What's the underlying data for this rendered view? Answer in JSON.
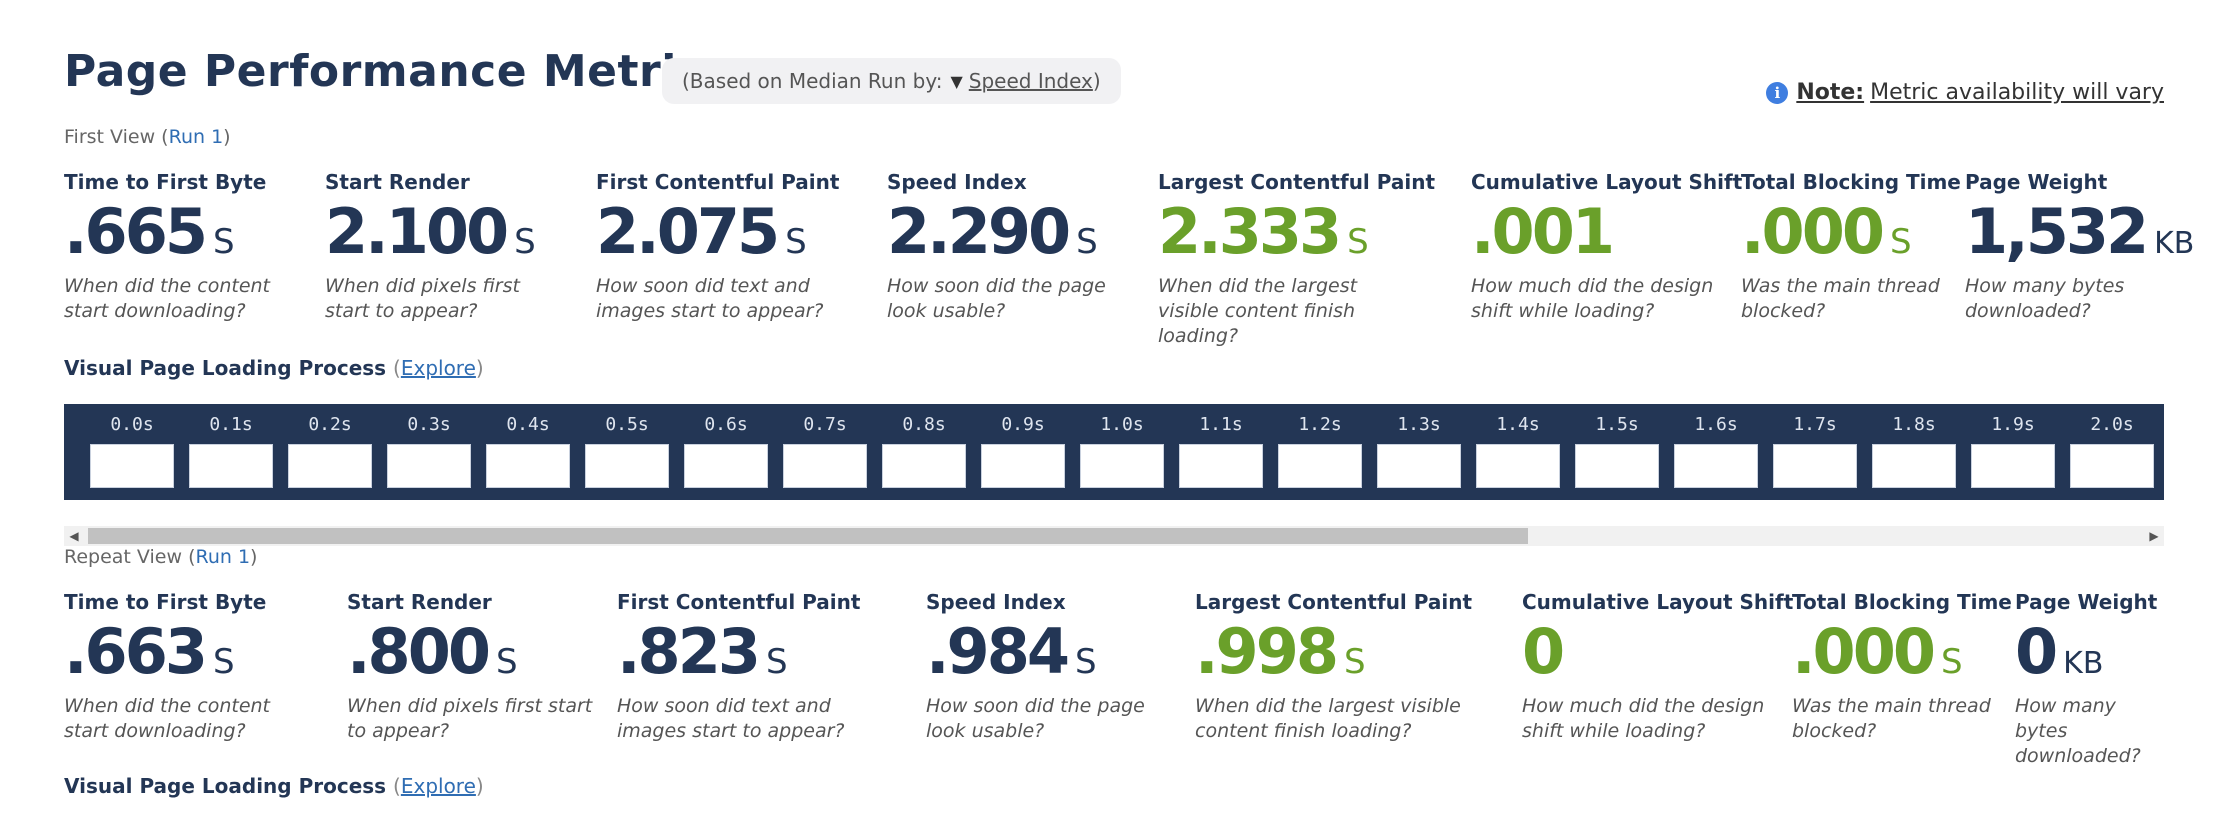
{
  "header": {
    "title": "Page Performance Metrics",
    "median_prefix": "(Based on Median Run by:",
    "median_arrow": "▼",
    "median_metric": "Speed Index",
    "median_suffix": ")"
  },
  "note": {
    "icon": "info-icon",
    "label": "Note:",
    "text": "Metric availability will vary"
  },
  "first_view": {
    "label": "First View",
    "run_open": "(",
    "run_link": "Run 1",
    "run_close": ")",
    "metrics": [
      {
        "title": "Time to First Byte",
        "value": ".665",
        "unit": "S",
        "desc": "When did the content start downloading?"
      },
      {
        "title": "Start Render",
        "value": "2.100",
        "unit": "S",
        "desc": "When did pixels first start to appear?"
      },
      {
        "title": "First Contentful Paint",
        "value": "2.075",
        "unit": "S",
        "desc": "How soon did text and images start to appear?"
      },
      {
        "title": "Speed Index",
        "value": "2.290",
        "unit": "S",
        "desc": "How soon did the page look usable?"
      },
      {
        "title": "Largest Contentful Paint",
        "value": "2.333",
        "unit": "S",
        "desc": "When did the largest visible content finish loading?"
      },
      {
        "title": "Cumulative Layout Shift",
        "value": ".001",
        "unit": "",
        "desc": "How much did the design shift while loading?"
      },
      {
        "title": "Total Blocking Time",
        "value": ".000",
        "unit": "S",
        "desc": "Was the main thread blocked?"
      },
      {
        "title": "Page Weight",
        "value": "1,532",
        "unit": "KB",
        "desc": "How many bytes downloaded?"
      }
    ],
    "visual": {
      "title": "Visual Page Loading Process",
      "paren_open": "(",
      "explore": "Explore",
      "paren_close": ")",
      "frames": [
        "0.0s",
        "0.1s",
        "0.2s",
        "0.3s",
        "0.4s",
        "0.5s",
        "0.6s",
        "0.7s",
        "0.8s",
        "0.9s",
        "1.0s",
        "1.1s",
        "1.2s",
        "1.3s",
        "1.4s",
        "1.5s",
        "1.6s",
        "1.7s",
        "1.8s",
        "1.9s",
        "2.0s"
      ]
    }
  },
  "repeat_view": {
    "label": "Repeat View",
    "run_open": "(",
    "run_link": "Run 1",
    "run_close": ")",
    "metrics": [
      {
        "title": "Time to First Byte",
        "value": ".663",
        "unit": "S",
        "desc": "When did the content start downloading?"
      },
      {
        "title": "Start Render",
        "value": ".800",
        "unit": "S",
        "desc": "When did pixels first start to appear?"
      },
      {
        "title": "First Contentful Paint",
        "value": ".823",
        "unit": "S",
        "desc": "How soon did text and images start to appear?"
      },
      {
        "title": "Speed Index",
        "value": ".984",
        "unit": "S",
        "desc": "How soon did the page look usable?"
      },
      {
        "title": "Largest Contentful Paint",
        "value": ".998",
        "unit": "S",
        "desc": "When did the largest visible content finish loading?"
      },
      {
        "title": "Cumulative Layout Shift",
        "value": "0",
        "unit": "",
        "desc": "How much did the design shift while loading?"
      },
      {
        "title": "Total Blocking Time",
        "value": ".000",
        "unit": "S",
        "desc": "Was the main thread blocked?"
      },
      {
        "title": "Page Weight",
        "value": "0",
        "unit": "KB",
        "desc": "How many bytes downloaded?"
      }
    ],
    "visual": {
      "title": "Visual Page Loading Process",
      "paren_open": "(",
      "explore": "Explore",
      "paren_close": ")"
    }
  },
  "colors": {
    "navy": "#233655",
    "green": "#6aa02a",
    "link": "#2f6db3"
  },
  "scrollbar": {
    "left_arrow": "◀",
    "right_arrow": "▶"
  }
}
